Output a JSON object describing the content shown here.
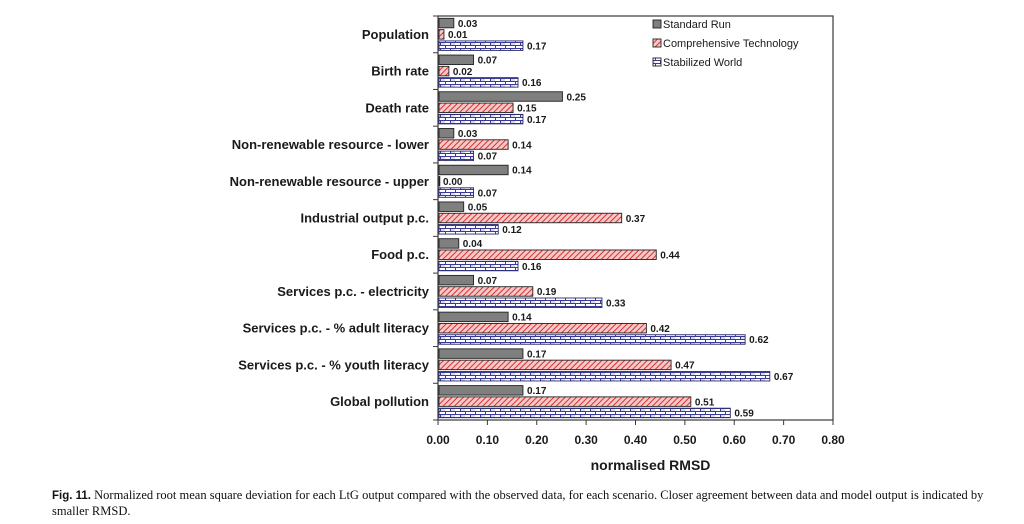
{
  "chart_data": {
    "type": "bar",
    "orientation": "horizontal",
    "title": "",
    "xlabel": "normalised RMSD",
    "ylabel": "",
    "xlim": [
      0.0,
      0.8
    ],
    "xticks": [
      "0.00",
      "0.10",
      "0.20",
      "0.30",
      "0.40",
      "0.50",
      "0.60",
      "0.70",
      "0.80"
    ],
    "grid": false,
    "legend_position": "top-right",
    "categories": [
      "Population",
      "Birth rate",
      "Death rate",
      "Non-renewable resource - lower",
      "Non-renewable resource - upper",
      "Industrial output p.c.",
      "Food p.c.",
      "Services p.c. - electricity",
      "Services p.c. - % adult literacy",
      "Services p.c. - % youth literacy",
      "Global pollution"
    ],
    "series": [
      {
        "name": "Standard Run",
        "pattern": "solid",
        "color": "#808080",
        "values": [
          0.03,
          0.07,
          0.25,
          0.03,
          0.14,
          0.05,
          0.04,
          0.07,
          0.14,
          0.17,
          0.17
        ],
        "labels": [
          "0.03",
          "0.07",
          "0.25",
          "0.03",
          "0.14",
          "0.05",
          "0.04",
          "0.07",
          "0.14",
          "0.17",
          "0.17"
        ]
      },
      {
        "name": "Comprehensive Technology",
        "pattern": "diagonal-hatch",
        "color": "#e04040",
        "values": [
          0.01,
          0.02,
          0.15,
          0.14,
          0.0,
          0.37,
          0.44,
          0.19,
          0.42,
          0.47,
          0.51
        ],
        "labels": [
          "0.01",
          "0.02",
          "0.15",
          "0.14",
          "0.00",
          "0.37",
          "0.44",
          "0.19",
          "0.42",
          "0.47",
          "0.51"
        ]
      },
      {
        "name": "Stabilized World",
        "pattern": "brick",
        "color": "#3a3a9a",
        "values": [
          0.17,
          0.16,
          0.17,
          0.07,
          0.07,
          0.12,
          0.16,
          0.33,
          0.62,
          0.67,
          0.59
        ],
        "labels": [
          "0.17",
          "0.16",
          "0.17",
          "0.07",
          "0.07",
          "0.12",
          "0.16",
          "0.33",
          "0.62",
          "0.67",
          "0.59"
        ]
      }
    ]
  },
  "caption": {
    "label": "Fig. 11.",
    "text": "Normalized root mean square deviation for each LtG output compared with the observed data, for each scenario. Closer agreement between data and model output is indicated by smaller RMSD."
  }
}
